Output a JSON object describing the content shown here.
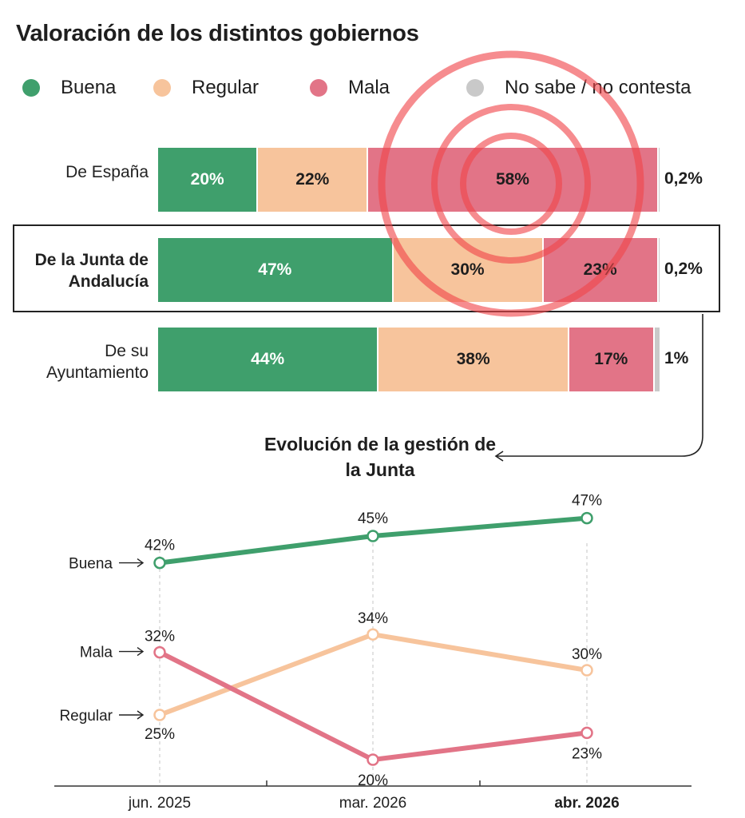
{
  "title": "Valoración de los distintos gobiernos",
  "legend": [
    {
      "label": "Buena",
      "color": "#3f9f6c"
    },
    {
      "label": "Regular",
      "color": "#f7c49c"
    },
    {
      "label": "Mala",
      "color": "#e27487"
    },
    {
      "label": "No sabe / no contesta",
      "color": "#c9c9c9"
    }
  ],
  "subtitle": "Evolución de la gestión de la Junta",
  "chart_data": [
    {
      "type": "bar",
      "stacked": true,
      "orientation": "horizontal",
      "categories": [
        "De España",
        "De la Junta de Andalucía",
        "De su Ayuntamiento"
      ],
      "highlighted_category": "De la Junta de Andalucía",
      "series": [
        {
          "name": "Buena",
          "color": "#3f9f6c",
          "values": [
            20,
            47,
            44
          ],
          "labels": [
            "20%",
            "47%",
            "44%"
          ]
        },
        {
          "name": "Regular",
          "color": "#f7c49c",
          "values": [
            22,
            30,
            38
          ],
          "labels": [
            "22%",
            "30%",
            "38%"
          ]
        },
        {
          "name": "Mala",
          "color": "#e27487",
          "values": [
            58,
            23,
            17
          ],
          "labels": [
            "58%",
            "23%",
            "17%"
          ]
        },
        {
          "name": "No sabe / no contesta",
          "color": "#c9c9c9",
          "values": [
            0.2,
            0.2,
            1
          ],
          "labels": [
            "0,2%",
            "0,2%",
            "1%"
          ]
        }
      ]
    },
    {
      "type": "line",
      "categories": [
        "jun. 2025",
        "mar. 2026",
        "abr. 2026"
      ],
      "highlighted_category": "abr. 2026",
      "ylim": [
        0,
        55
      ],
      "grid": false,
      "series": [
        {
          "name": "Buena",
          "color": "#3f9f6c",
          "values": [
            42,
            45,
            47
          ],
          "labels": [
            "42%",
            "45%",
            "47%"
          ]
        },
        {
          "name": "Mala",
          "color": "#e27487",
          "values": [
            32,
            20,
            23
          ],
          "labels": [
            "32%",
            "20%",
            "23%"
          ]
        },
        {
          "name": "Regular",
          "color": "#f7c49c",
          "values": [
            25,
            34,
            30
          ],
          "labels": [
            "25%",
            "34%",
            "30%"
          ]
        }
      ]
    }
  ]
}
